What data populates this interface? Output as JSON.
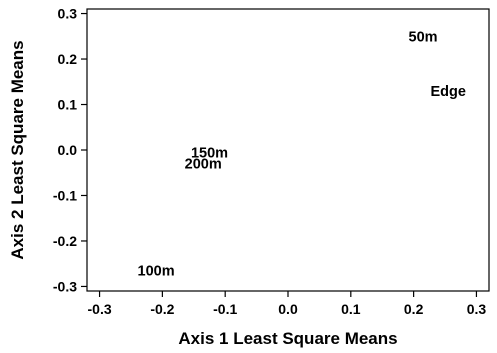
{
  "chart_data": {
    "type": "scatter",
    "xlabel": "Axis 1 Least Square Means",
    "ylabel": "Axis 2 Least Square Means",
    "xlim": [
      -0.32,
      0.32
    ],
    "ylim": [
      -0.31,
      0.31
    ],
    "x_ticks": [
      -0.3,
      -0.2,
      -0.1,
      0.0,
      0.1,
      0.2,
      0.3
    ],
    "x_tick_labels": [
      "-0.3",
      "-0.2",
      "-0.1",
      "0.0",
      "0.1",
      "0.2",
      "0.3"
    ],
    "y_ticks": [
      0.3,
      0.2,
      0.1,
      0.0,
      -0.1,
      -0.2,
      -0.3
    ],
    "y_tick_labels": [
      "0.3",
      "0.2",
      "0.1",
      "0.0",
      "-0.1",
      "-0.2",
      "-0.3"
    ],
    "grid": false,
    "points": [
      {
        "label": "50m",
        "x": 0.215,
        "y": 0.25
      },
      {
        "label": "Edge",
        "x": 0.255,
        "y": 0.13
      },
      {
        "label": "150m",
        "x": -0.125,
        "y": -0.005
      },
      {
        "label": "200m",
        "x": -0.135,
        "y": -0.03
      },
      {
        "label": "100m",
        "x": -0.21,
        "y": -0.265
      }
    ]
  }
}
